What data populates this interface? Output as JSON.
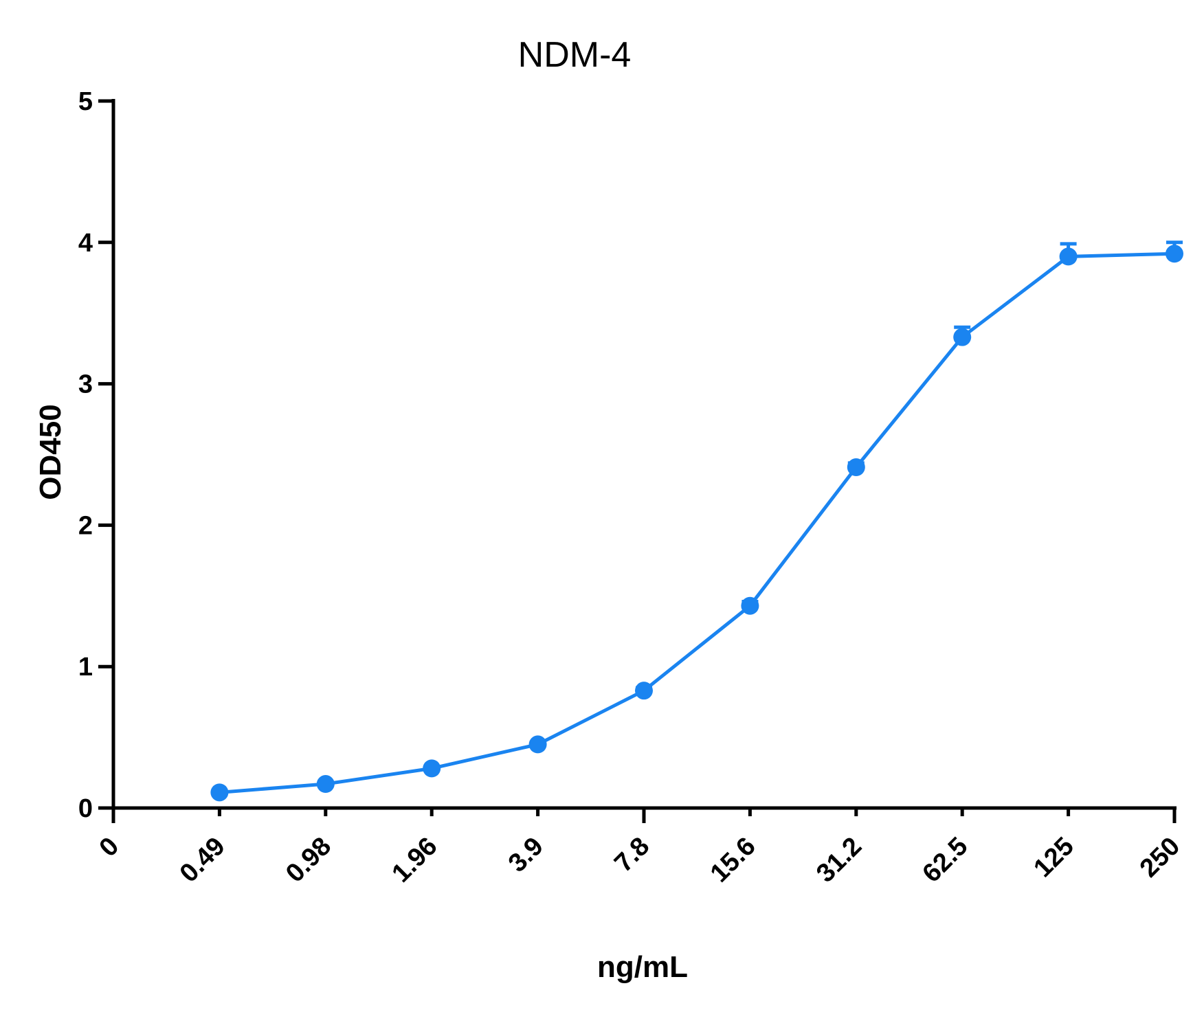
{
  "chart_data": {
    "type": "line",
    "title": "NDM-4",
    "xlabel": "ng/mL",
    "ylabel": "OD450",
    "categories": [
      "0",
      "0.49",
      "0.98",
      "1.96",
      "3.9",
      "7.8",
      "15.6",
      "31.2",
      "62.5",
      "125",
      "250"
    ],
    "yticks": [
      "0",
      "1",
      "2",
      "3",
      "4",
      "5"
    ],
    "ylim": [
      0,
      5
    ],
    "series": [
      {
        "x": [
          "0.49",
          "0.98",
          "1.96",
          "3.9",
          "7.8",
          "15.6",
          "31.2",
          "62.5",
          "125",
          "250"
        ],
        "values": [
          0.11,
          0.17,
          0.28,
          0.45,
          0.83,
          1.43,
          2.41,
          3.33,
          3.9,
          3.92
        ],
        "error": [
          0.01,
          0.01,
          0.01,
          0.01,
          0.02,
          0.03,
          0.03,
          0.07,
          0.09,
          0.08
        ]
      }
    ],
    "color": "#1a84f0",
    "grid": false,
    "legend": "none"
  }
}
